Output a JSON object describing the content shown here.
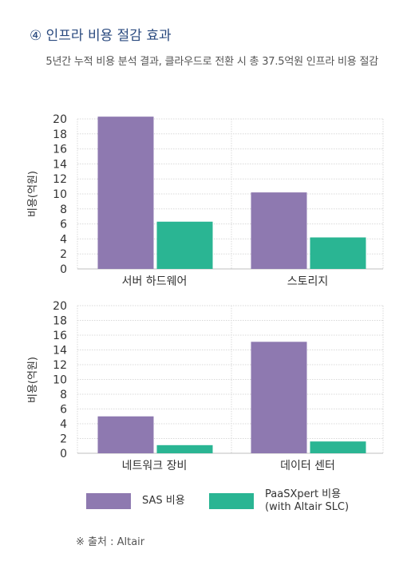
{
  "header": {
    "heading": "④ 인프라 비용 절감 효과",
    "subtitle": "5년간 누적 비용 분석 결과, 클라우드로 전환 시 총 37.5억원 인프라 비용 절감"
  },
  "colors": {
    "sas": "#8e79b0",
    "paasxpert": "#2ab593",
    "grid": "#d9d9d9",
    "axis": "#bfbfbf"
  },
  "chart_data": [
    {
      "type": "bar",
      "categories": [
        "서버 하드웨어",
        "스토리지"
      ],
      "series": [
        {
          "name": "SAS 비용",
          "values": [
            20.3,
            10.2
          ]
        },
        {
          "name": "PaaSXpert 비용 (with Altair SLC)",
          "values": [
            6.3,
            4.2
          ]
        }
      ],
      "ylabel": "비용(억원)",
      "ylim": [
        0,
        20
      ],
      "yticks": [
        0,
        2,
        4,
        6,
        8,
        10,
        12,
        14,
        16,
        18,
        20
      ],
      "grid": true
    },
    {
      "type": "bar",
      "categories": [
        "네트워크 장비",
        "데이터 센터"
      ],
      "series": [
        {
          "name": "SAS 비용",
          "values": [
            5.0,
            15.1
          ]
        },
        {
          "name": "PaaSXpert 비용 (with Altair SLC)",
          "values": [
            1.1,
            1.6
          ]
        }
      ],
      "ylabel": "비용(억원)",
      "ylim": [
        0,
        20
      ],
      "yticks": [
        0,
        2,
        4,
        6,
        8,
        10,
        12,
        14,
        16,
        18,
        20
      ],
      "grid": true
    }
  ],
  "legend": {
    "sas_label": "SAS 비용",
    "paasxpert_label": "PaaSXpert 비용\n(with Altair SLC)"
  },
  "source": "※ 출처 : Altair"
}
